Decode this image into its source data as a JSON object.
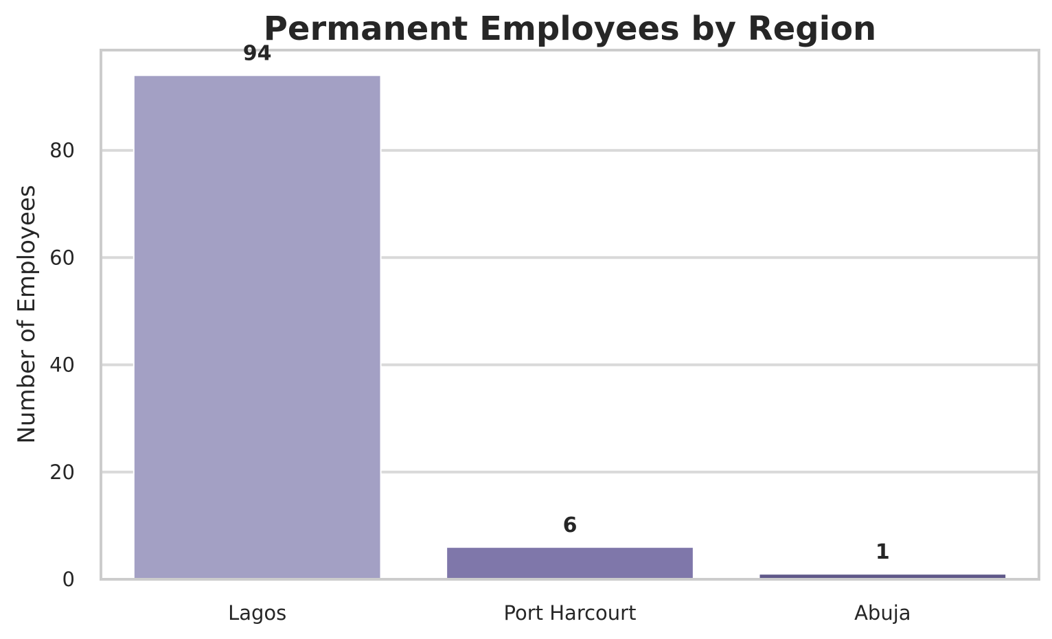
{
  "chart_data": {
    "type": "bar",
    "title": "Permanent Employees by Region",
    "xlabel": "",
    "ylabel": "Number of Employees",
    "categories": [
      "Lagos",
      "Port Harcourt",
      "Abuja"
    ],
    "values": [
      94,
      6,
      1
    ],
    "data_labels": [
      "94",
      "6",
      "1"
    ],
    "ylim": [
      0,
      98.7
    ],
    "yticks": [
      0,
      20,
      40,
      60,
      80
    ],
    "grid": "horizontal",
    "legend": "none",
    "colors": [
      "#a3a0c4",
      "#7f77aa",
      "#5f5889"
    ],
    "grid_color": "#d9d9d9",
    "frame_color": "#cccccc"
  }
}
